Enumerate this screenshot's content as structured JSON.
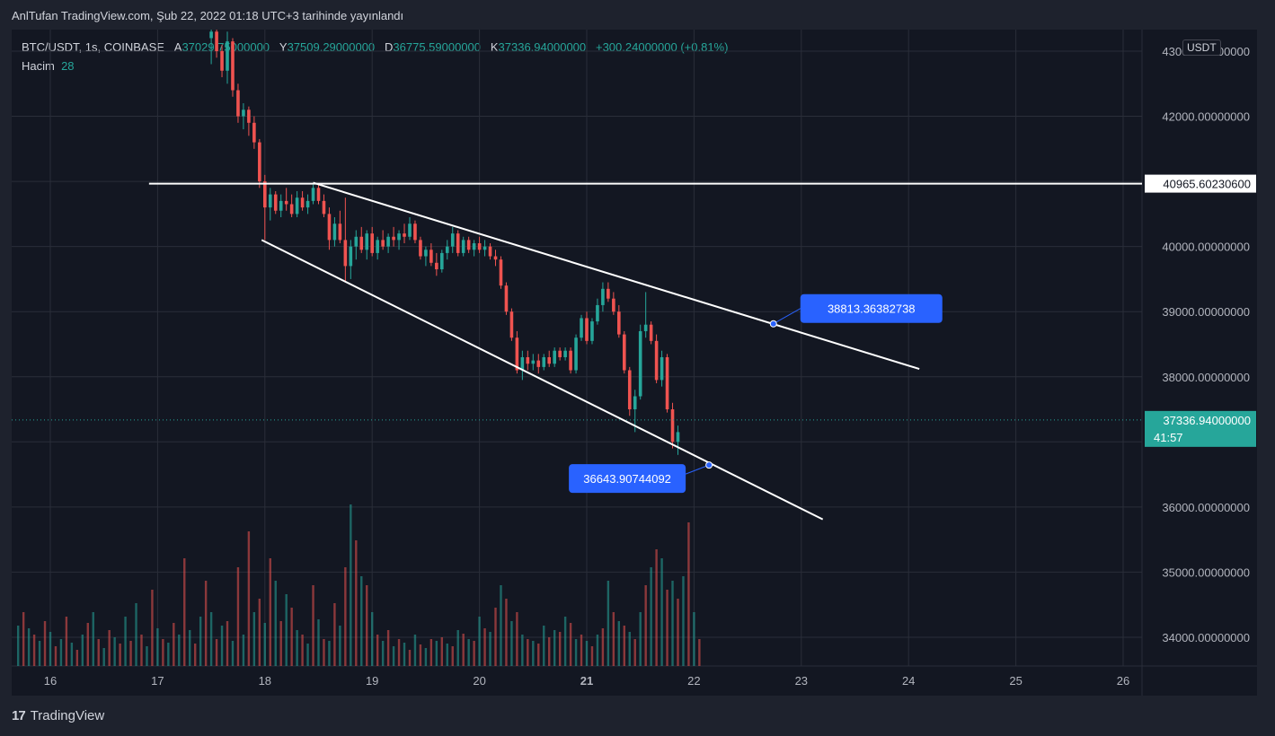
{
  "header": {
    "text": "AnlTufan TradingView.com, Şub 22, 2022 01:18 UTC+3 tarihinde yayınlandı"
  },
  "brand": {
    "logo": "17",
    "name": "TradingView"
  },
  "legend": {
    "symbol": "BTC/USDT, 1s, COINBASE",
    "o_label": "A",
    "o": "37029.75000000",
    "h_label": "Y",
    "h": "37509.29000000",
    "l_label": "D",
    "l": "36775.59000000",
    "c_label": "K",
    "c": "37336.94000000",
    "change": "+300.24000000 (+0.81%)",
    "volume_label": "Hacim",
    "volume": "28"
  },
  "currency": "USDT",
  "colors": {
    "up": "#26a69a",
    "down": "#ef5350",
    "accent": "#2962ff",
    "background": "#131722"
  },
  "chart_data": {
    "type": "candlestick",
    "symbol": "BTC/USDT",
    "interval": "1h",
    "exchange": "COINBASE",
    "x_ticks": [
      "16",
      "17",
      "18",
      "19",
      "20",
      "21",
      "22",
      "23",
      "24",
      "25",
      "26"
    ],
    "y_ticks": [
      "43000.00000000",
      "42000.00000000",
      "41000.00000000",
      "40000.00000000",
      "39000.00000000",
      "38000.00000000",
      "37000.00000000",
      "36000.00000000",
      "35000.00000000",
      "34000.00000000"
    ],
    "ylim": [
      33600,
      43400
    ],
    "xlim": [
      15.7,
      26.2
    ],
    "horizontal_line": {
      "value": 40965.6023,
      "label": "40965.60230600"
    },
    "last_price": {
      "value": 37336.94,
      "label": "37336.94000000",
      "countdown": "41:57"
    },
    "trendlines": [
      {
        "name": "upper",
        "start": [
          18.45,
          40980
        ],
        "end": [
          24.1,
          38120
        ],
        "marker": {
          "x": 22.74,
          "y": 38813.36382738,
          "label": "38813.36382738"
        }
      },
      {
        "name": "lower",
        "start": [
          17.97,
          40100
        ],
        "end": [
          23.2,
          35810
        ],
        "marker": {
          "x": 22.14,
          "y": 36643.90744092,
          "label": "36643.90744092"
        }
      }
    ],
    "candles": [
      [
        17.5,
        43200,
        43500,
        42800,
        43300
      ],
      [
        17.55,
        43300,
        43400,
        42900,
        43000
      ],
      [
        17.6,
        43000,
        43100,
        42600,
        42700
      ],
      [
        17.65,
        42700,
        43300,
        42500,
        43150
      ],
      [
        17.7,
        43150,
        43200,
        42300,
        42400
      ],
      [
        17.75,
        42400,
        42500,
        41900,
        42000
      ],
      [
        17.8,
        42000,
        42200,
        41800,
        42100
      ],
      [
        17.85,
        42100,
        42150,
        41700,
        41900
      ],
      [
        17.9,
        41900,
        42000,
        41500,
        41600
      ],
      [
        17.95,
        41600,
        41650,
        40900,
        41000
      ],
      [
        18.0,
        41000,
        41100,
        40100,
        40600
      ],
      [
        18.05,
        40600,
        40900,
        40400,
        40800
      ],
      [
        18.1,
        40800,
        40850,
        40500,
        40550
      ],
      [
        18.15,
        40550,
        40800,
        40450,
        40700
      ],
      [
        18.2,
        40700,
        40900,
        40550,
        40650
      ],
      [
        18.25,
        40650,
        40800,
        40450,
        40500
      ],
      [
        18.3,
        40500,
        40850,
        40450,
        40750
      ],
      [
        18.35,
        40750,
        40850,
        40550,
        40600
      ],
      [
        18.4,
        40600,
        40800,
        40500,
        40700
      ],
      [
        18.45,
        40700,
        40950,
        40650,
        40900
      ],
      [
        18.5,
        40900,
        40950,
        40650,
        40700
      ],
      [
        18.55,
        40700,
        40800,
        40450,
        40500
      ],
      [
        18.6,
        40500,
        40600,
        39950,
        40100
      ],
      [
        18.65,
        40100,
        40450,
        40000,
        40350
      ],
      [
        18.7,
        40350,
        40550,
        40050,
        40100
      ],
      [
        18.75,
        40100,
        40750,
        39450,
        39700
      ],
      [
        18.8,
        39700,
        40100,
        39500,
        40000
      ],
      [
        18.85,
        40000,
        40250,
        39800,
        40150
      ],
      [
        18.9,
        40150,
        40300,
        39900,
        39950
      ],
      [
        18.95,
        39950,
        40250,
        39800,
        40200
      ],
      [
        19.0,
        40200,
        40300,
        39850,
        39900
      ],
      [
        19.05,
        39900,
        40150,
        39800,
        40100
      ],
      [
        19.1,
        40100,
        40250,
        39950,
        40000
      ],
      [
        19.15,
        40000,
        40200,
        39900,
        40150
      ],
      [
        19.2,
        40150,
        40300,
        40000,
        40100
      ],
      [
        19.25,
        40100,
        40250,
        39950,
        40200
      ],
      [
        19.3,
        40200,
        40350,
        40050,
        40150
      ],
      [
        19.35,
        40150,
        40450,
        40100,
        40350
      ],
      [
        19.4,
        40350,
        40400,
        40050,
        40100
      ],
      [
        19.45,
        40100,
        40150,
        39800,
        39850
      ],
      [
        19.5,
        39850,
        40000,
        39700,
        39950
      ],
      [
        19.55,
        39950,
        40050,
        39700,
        39750
      ],
      [
        19.6,
        39750,
        39900,
        39550,
        39650
      ],
      [
        19.65,
        39650,
        39950,
        39600,
        39900
      ],
      [
        19.7,
        39900,
        40100,
        39800,
        40000
      ],
      [
        19.75,
        40000,
        40300,
        39900,
        40200
      ],
      [
        19.8,
        40200,
        40250,
        39850,
        39900
      ],
      [
        19.85,
        39900,
        40150,
        39850,
        40100
      ],
      [
        19.9,
        40100,
        40150,
        39900,
        39950
      ],
      [
        19.95,
        39950,
        40100,
        39850,
        40050
      ],
      [
        20.0,
        40050,
        40150,
        39900,
        39950
      ],
      [
        20.05,
        39950,
        40100,
        39850,
        40000
      ],
      [
        20.1,
        40000,
        40050,
        39800,
        39850
      ],
      [
        20.15,
        39850,
        39950,
        39700,
        39800
      ],
      [
        20.2,
        39800,
        39850,
        39350,
        39400
      ],
      [
        20.25,
        39400,
        39450,
        38950,
        39000
      ],
      [
        20.3,
        39000,
        39050,
        38550,
        38600
      ],
      [
        20.35,
        38600,
        38700,
        38050,
        38100
      ],
      [
        20.4,
        38100,
        38400,
        37950,
        38300
      ],
      [
        20.45,
        38300,
        38400,
        38100,
        38200
      ],
      [
        20.5,
        38200,
        38350,
        38100,
        38250
      ],
      [
        20.55,
        38250,
        38350,
        38050,
        38150
      ],
      [
        20.6,
        38150,
        38350,
        38100,
        38300
      ],
      [
        20.65,
        38300,
        38400,
        38150,
        38200
      ],
      [
        20.7,
        38200,
        38450,
        38150,
        38400
      ],
      [
        20.75,
        38400,
        38450,
        38250,
        38300
      ],
      [
        20.8,
        38300,
        38450,
        38250,
        38400
      ],
      [
        20.85,
        38400,
        38450,
        38050,
        38100
      ],
      [
        20.9,
        38100,
        38650,
        38050,
        38600
      ],
      [
        20.95,
        38600,
        38950,
        38550,
        38900
      ],
      [
        21.0,
        38900,
        39000,
        38500,
        38550
      ],
      [
        21.05,
        38550,
        38900,
        38500,
        38850
      ],
      [
        21.1,
        38850,
        39200,
        38800,
        39100
      ],
      [
        21.15,
        39100,
        39450,
        39000,
        39350
      ],
      [
        21.2,
        39350,
        39450,
        39150,
        39200
      ],
      [
        21.25,
        39200,
        39300,
        38950,
        39000
      ],
      [
        21.3,
        39000,
        39100,
        38600,
        38650
      ],
      [
        21.35,
        38650,
        38700,
        38050,
        38100
      ],
      [
        21.4,
        38100,
        38150,
        37400,
        37500
      ],
      [
        21.45,
        37500,
        37800,
        37150,
        37700
      ],
      [
        21.5,
        37700,
        38800,
        37650,
        38700
      ],
      [
        21.55,
        38700,
        39300,
        38600,
        38800
      ],
      [
        21.6,
        38800,
        38850,
        38500,
        38550
      ],
      [
        21.65,
        38550,
        38650,
        37900,
        37950
      ],
      [
        21.7,
        37950,
        38400,
        37850,
        38300
      ],
      [
        21.75,
        38300,
        38350,
        37450,
        37500
      ],
      [
        21.8,
        37500,
        37600,
        36900,
        37000
      ],
      [
        21.85,
        37000,
        37250,
        36800,
        37150
      ]
    ],
    "volumes": [
      [
        "u",
        45
      ],
      [
        "d",
        60
      ],
      [
        "u",
        42
      ],
      [
        "d",
        35
      ],
      [
        "u",
        28
      ],
      [
        "d",
        50
      ],
      [
        "u",
        38
      ],
      [
        "d",
        22
      ],
      [
        "u",
        30
      ],
      [
        "d",
        55
      ],
      [
        "u",
        26
      ],
      [
        "d",
        18
      ],
      [
        "u",
        35
      ],
      [
        "d",
        48
      ],
      [
        "u",
        60
      ],
      [
        "d",
        30
      ],
      [
        "u",
        20
      ],
      [
        "d",
        40
      ],
      [
        "u",
        32
      ],
      [
        "d",
        25
      ],
      [
        "u",
        55
      ],
      [
        "d",
        28
      ],
      [
        "u",
        70
      ],
      [
        "d",
        35
      ],
      [
        "u",
        22
      ],
      [
        "d",
        85
      ],
      [
        "u",
        42
      ],
      [
        "d",
        30
      ],
      [
        "u",
        26
      ],
      [
        "d",
        48
      ],
      [
        "u",
        35
      ],
      [
        "d",
        120
      ],
      [
        "u",
        40
      ],
      [
        "d",
        25
      ],
      [
        "u",
        55
      ],
      [
        "d",
        95
      ],
      [
        "u",
        60
      ],
      [
        "d",
        30
      ],
      [
        "u",
        45
      ],
      [
        "d",
        50
      ],
      [
        "u",
        28
      ],
      [
        "d",
        110
      ],
      [
        "u",
        35
      ],
      [
        "d",
        150
      ],
      [
        "u",
        60
      ],
      [
        "d",
        75
      ],
      [
        "u",
        48
      ],
      [
        "d",
        120
      ],
      [
        "u",
        95
      ],
      [
        "d",
        50
      ],
      [
        "u",
        80
      ],
      [
        "d",
        65
      ],
      [
        "u",
        40
      ],
      [
        "d",
        35
      ],
      [
        "u",
        25
      ],
      [
        "d",
        90
      ],
      [
        "u",
        52
      ],
      [
        "d",
        30
      ],
      [
        "u",
        28
      ],
      [
        "d",
        70
      ],
      [
        "u",
        45
      ],
      [
        "d",
        110
      ],
      [
        "u",
        180
      ],
      [
        "d",
        140
      ],
      [
        "u",
        100
      ],
      [
        "d",
        90
      ],
      [
        "u",
        60
      ],
      [
        "d",
        35
      ],
      [
        "u",
        28
      ],
      [
        "d",
        40
      ],
      [
        "u",
        22
      ],
      [
        "d",
        30
      ],
      [
        "u",
        26
      ],
      [
        "d",
        18
      ],
      [
        "u",
        35
      ],
      [
        "d",
        24
      ],
      [
        "u",
        20
      ],
      [
        "d",
        30
      ],
      [
        "u",
        28
      ],
      [
        "d",
        32
      ],
      [
        "u",
        25
      ],
      [
        "d",
        22
      ],
      [
        "u",
        40
      ],
      [
        "d",
        36
      ],
      [
        "u",
        30
      ],
      [
        "d",
        28
      ],
      [
        "u",
        55
      ],
      [
        "d",
        42
      ],
      [
        "u",
        38
      ],
      [
        "d",
        65
      ],
      [
        "u",
        90
      ],
      [
        "d",
        75
      ],
      [
        "u",
        50
      ],
      [
        "d",
        60
      ],
      [
        "u",
        35
      ],
      [
        "d",
        30
      ],
      [
        "u",
        28
      ],
      [
        "d",
        25
      ],
      [
        "u",
        45
      ],
      [
        "d",
        32
      ],
      [
        "u",
        40
      ],
      [
        "d",
        38
      ],
      [
        "u",
        55
      ],
      [
        "d",
        48
      ],
      [
        "u",
        30
      ],
      [
        "d",
        35
      ],
      [
        "u",
        28
      ],
      [
        "d",
        22
      ],
      [
        "u",
        35
      ],
      [
        "d",
        42
      ],
      [
        "u",
        95
      ],
      [
        "d",
        60
      ],
      [
        "u",
        50
      ],
      [
        "d",
        45
      ],
      [
        "u",
        38
      ],
      [
        "d",
        30
      ],
      [
        "u",
        60
      ],
      [
        "d",
        90
      ],
      [
        "u",
        110
      ],
      [
        "d",
        130
      ],
      [
        "u",
        120
      ],
      [
        "d",
        85
      ],
      [
        "u",
        95
      ],
      [
        "d",
        75
      ],
      [
        "u",
        100
      ],
      [
        "d",
        160
      ],
      [
        "u",
        60
      ],
      [
        "d",
        30
      ]
    ]
  }
}
